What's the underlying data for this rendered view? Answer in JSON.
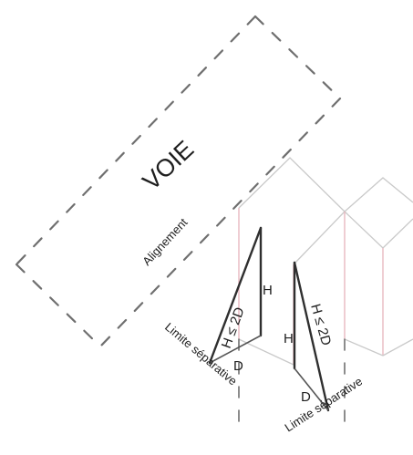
{
  "diagram": {
    "voie": "VOIE",
    "alignement": "Alignement",
    "h_left": "H",
    "h_right": "H",
    "rule_left": "H ≤ 2D",
    "rule_right": "H ≤ 2D",
    "d_left": "D",
    "d_right": "D",
    "limite_left": "Limite séparative",
    "limite_right": "Limite séparative"
  }
}
